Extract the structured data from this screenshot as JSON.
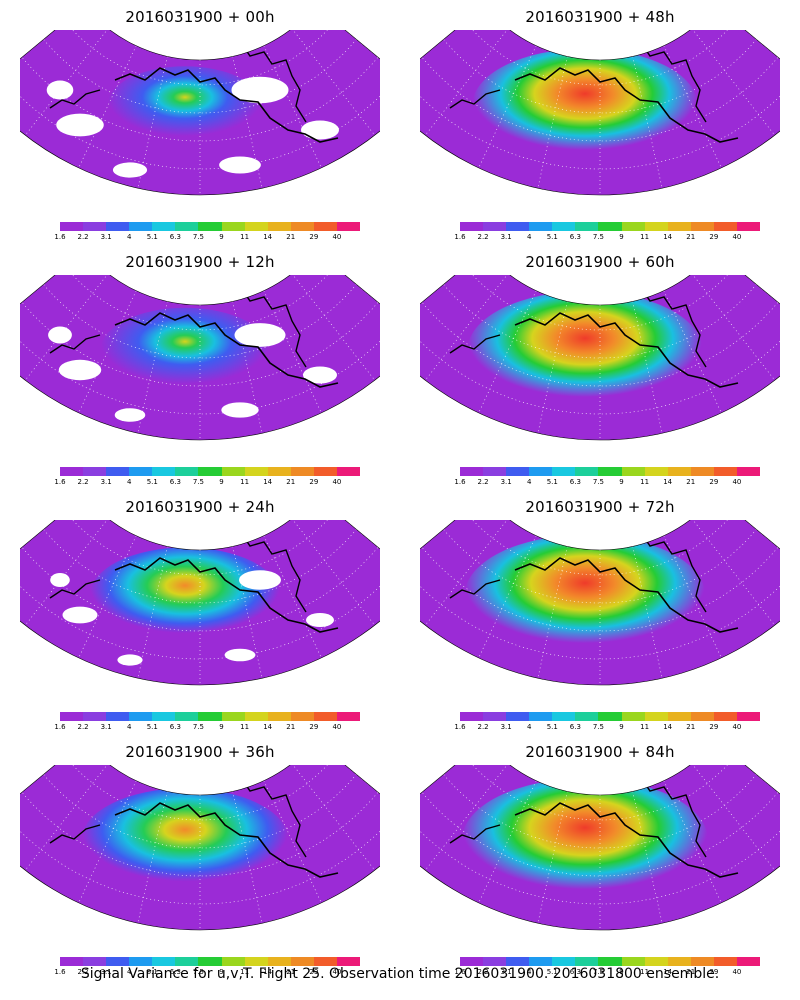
{
  "panels": [
    {
      "title": "2016031900 + 00h",
      "intensity": 0.25
    },
    {
      "title": "2016031900 + 48h",
      "intensity": 0.75
    },
    {
      "title": "2016031900 + 12h",
      "intensity": 0.35
    },
    {
      "title": "2016031900 + 60h",
      "intensity": 0.82
    },
    {
      "title": "2016031900 + 24h",
      "intensity": 0.5
    },
    {
      "title": "2016031900 + 72h",
      "intensity": 0.86
    },
    {
      "title": "2016031900 + 36h",
      "intensity": 0.62
    },
    {
      "title": "2016031900 + 84h",
      "intensity": 0.9
    }
  ],
  "colorbar": {
    "labels": [
      "1.6",
      "2.2",
      "3.1",
      "4",
      "5.1",
      "6.3",
      "7.5",
      "9",
      "11",
      "14",
      "21",
      "29",
      "40"
    ],
    "colors": [
      "#9b2bd6",
      "#8a3ee0",
      "#3f5cf0",
      "#1e9bf0",
      "#19c8e0",
      "#1ccf9a",
      "#25cc35",
      "#9ad61e",
      "#d4d41e",
      "#e8b21e",
      "#ee8a25",
      "#f25c2a",
      "#ec1a78"
    ]
  },
  "footer": "Signal Variance for u,v,T. Flight 25. Observation time 2016031900. 2016031800 ensemble."
}
